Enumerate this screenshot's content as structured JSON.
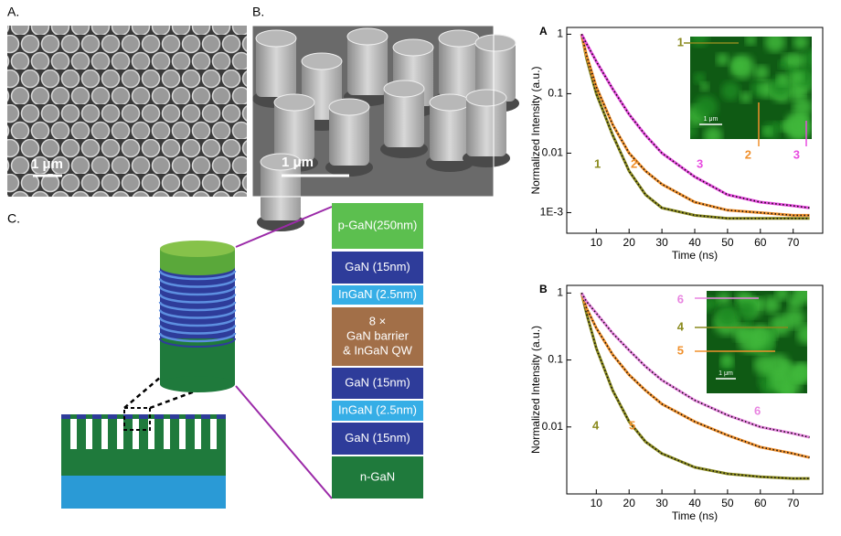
{
  "panels": {
    "sem_a": {
      "label": "A.",
      "scale": "1 μm"
    },
    "sem_b": {
      "label": "B.",
      "scale": "1 μm"
    },
    "schematic": {
      "label": "C."
    }
  },
  "layers": [
    {
      "lines": [
        "p-GaN(250nm)"
      ],
      "color": "#5cbf4f"
    },
    {
      "lines": [
        "GaN (15nm)"
      ],
      "color": "#2e3c9a"
    },
    {
      "lines": [
        "InGaN (2.5nm)"
      ],
      "color": "#36aee6"
    },
    {
      "lines": [
        "8 ×",
        "GaN barrier",
        "& InGaN QW"
      ],
      "color": "#a26f48"
    },
    {
      "lines": [
        "GaN (15nm)"
      ],
      "color": "#2e3c9a"
    },
    {
      "lines": [
        "InGaN (2.5nm)"
      ],
      "color": "#36aee6"
    },
    {
      "lines": [
        "GaN (15nm)"
      ],
      "color": "#2e3c9a"
    },
    {
      "lines": [
        "n-GaN"
      ],
      "color": "#1f7a3c"
    }
  ],
  "chart_data": [
    {
      "type": "line",
      "panel": "A",
      "xlabel": "Time (ns)",
      "ylabel": "Normalized Intensity (a.u.)",
      "log_y": true,
      "x": [
        5.5,
        7,
        10,
        15,
        20,
        25,
        30,
        40,
        50,
        60,
        70,
        75
      ],
      "xlim": [
        1,
        79
      ],
      "xticks": [
        10,
        20,
        30,
        40,
        50,
        60,
        70
      ],
      "ylim": [
        0.00045,
        1.3
      ],
      "yticks": [
        1,
        0.1,
        0.01,
        {
          "value": 0.001,
          "label": "1E-3"
        }
      ],
      "inset_scale": "1 μm",
      "series": [
        {
          "name": "1",
          "color": "#8a8a1e",
          "values": [
            1,
            0.4,
            0.1,
            0.02,
            0.005,
            0.002,
            0.0012,
            0.0009,
            0.0008,
            0.0008,
            0.0008,
            0.0008
          ]
        },
        {
          "name": "2",
          "color": "#f0902c",
          "values": [
            1,
            0.45,
            0.13,
            0.03,
            0.01,
            0.005,
            0.003,
            0.0015,
            0.0011,
            0.001,
            0.0009,
            0.0009
          ]
        },
        {
          "name": "3",
          "color": "#e84be0",
          "values": [
            1,
            0.7,
            0.35,
            0.12,
            0.045,
            0.02,
            0.01,
            0.004,
            0.002,
            0.0015,
            0.0013,
            0.0012
          ]
        }
      ]
    },
    {
      "type": "line",
      "panel": "B",
      "xlabel": "Time (ns)",
      "ylabel": "Normalized Intensity (a.u.)",
      "log_y": true,
      "x": [
        5.5,
        7,
        10,
        15,
        20,
        25,
        30,
        40,
        50,
        60,
        70,
        75
      ],
      "xlim": [
        1,
        79
      ],
      "xticks": [
        10,
        20,
        30,
        40,
        50,
        60,
        70
      ],
      "ylim": [
        0.001,
        1.3
      ],
      "yticks": [
        1,
        0.1,
        0.01
      ],
      "inset_scale": "1 μm",
      "series": [
        {
          "name": "4",
          "color": "#8a8a1e",
          "values": [
            1,
            0.5,
            0.15,
            0.035,
            0.012,
            0.006,
            0.004,
            0.0025,
            0.002,
            0.0018,
            0.0017,
            0.0017
          ]
        },
        {
          "name": "5",
          "color": "#f0902c",
          "values": [
            1,
            0.6,
            0.3,
            0.12,
            0.06,
            0.035,
            0.022,
            0.012,
            0.0075,
            0.005,
            0.004,
            0.0035
          ]
        },
        {
          "name": "6",
          "color": "#e884e0",
          "values": [
            1,
            0.75,
            0.5,
            0.25,
            0.14,
            0.08,
            0.05,
            0.025,
            0.015,
            0.01,
            0.008,
            0.007
          ]
        }
      ]
    }
  ]
}
